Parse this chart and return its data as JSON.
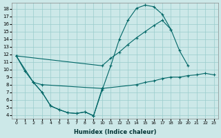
{
  "xlabel": "Humidex (Indice chaleur)",
  "bg_color": "#cce8e8",
  "grid_color": "#99cccc",
  "line_color": "#006666",
  "xlim": [
    -0.5,
    23.5
  ],
  "ylim": [
    3.5,
    18.8
  ],
  "xticks": [
    0,
    1,
    2,
    3,
    4,
    5,
    6,
    7,
    8,
    9,
    10,
    11,
    12,
    13,
    14,
    15,
    16,
    17,
    18,
    19,
    20,
    21,
    22,
    23
  ],
  "yticks": [
    4,
    5,
    6,
    7,
    8,
    9,
    10,
    11,
    12,
    13,
    14,
    15,
    16,
    17,
    18
  ],
  "series": [
    {
      "x": [
        0,
        1,
        2,
        3,
        4,
        5,
        6,
        7,
        8,
        9,
        10,
        11,
        12,
        13,
        14,
        15,
        16,
        17,
        18,
        19,
        20
      ],
      "y": [
        11.8,
        9.8,
        8.3,
        7.0,
        5.2,
        4.7,
        4.3,
        4.2,
        4.4,
        3.9,
        7.3,
        10.5,
        14.0,
        16.5,
        18.1,
        18.5,
        18.3,
        17.3,
        15.3,
        12.5,
        10.5
      ]
    },
    {
      "x": [
        0,
        10,
        11,
        12,
        13,
        14,
        15,
        16,
        17,
        18
      ],
      "y": [
        11.8,
        10.5,
        11.5,
        12.3,
        13.3,
        14.2,
        15.0,
        15.8,
        16.5,
        15.3
      ]
    },
    {
      "x": [
        0,
        2,
        3,
        10,
        14,
        15,
        16,
        17,
        18,
        19,
        20,
        21,
        22,
        23
      ],
      "y": [
        11.8,
        8.3,
        8.0,
        7.5,
        8.0,
        8.3,
        8.5,
        8.8,
        9.0,
        9.0,
        9.2,
        9.3,
        9.5,
        9.3
      ]
    },
    {
      "x": [
        2,
        3,
        4,
        5,
        6,
        7,
        8,
        9,
        10
      ],
      "y": [
        8.3,
        7.0,
        5.2,
        4.7,
        4.3,
        4.2,
        4.4,
        3.9,
        7.5
      ]
    }
  ]
}
